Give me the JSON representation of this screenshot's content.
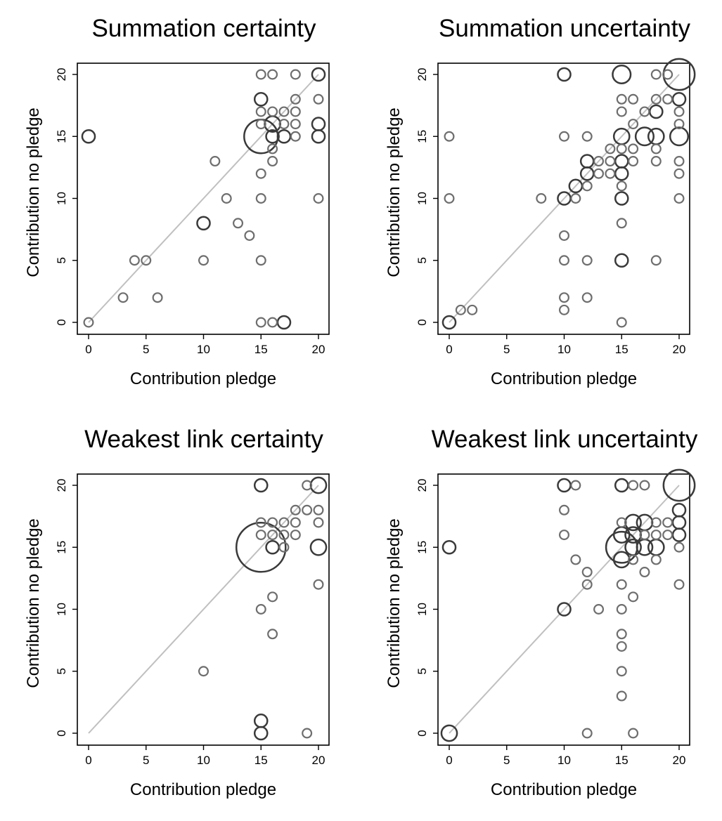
{
  "chart_data": [
    {
      "type": "scatter",
      "title": "Summation certainty",
      "xlabel": "Contribution pledge",
      "ylabel": "Contribution no pledge",
      "xlim": [
        0,
        20
      ],
      "ylim": [
        0,
        20
      ],
      "xticks": [
        0,
        5,
        10,
        15,
        20
      ],
      "yticks": [
        0,
        5,
        10,
        15,
        20
      ],
      "reference_line": "y = x",
      "grid": false,
      "marker_color": "#6e6e6e",
      "points": [
        {
          "x": 0,
          "y": 0,
          "n": 1
        },
        {
          "x": 0,
          "y": 15,
          "n": 2
        },
        {
          "x": 3,
          "y": 2,
          "n": 1
        },
        {
          "x": 4,
          "y": 5,
          "n": 1
        },
        {
          "x": 5,
          "y": 5,
          "n": 1
        },
        {
          "x": 6,
          "y": 2,
          "n": 1
        },
        {
          "x": 10,
          "y": 5,
          "n": 1
        },
        {
          "x": 10,
          "y": 8,
          "n": 2
        },
        {
          "x": 11,
          "y": 13,
          "n": 1
        },
        {
          "x": 12,
          "y": 10,
          "n": 1
        },
        {
          "x": 13,
          "y": 8,
          "n": 1
        },
        {
          "x": 14,
          "y": 7,
          "n": 1
        },
        {
          "x": 15,
          "y": 0,
          "n": 1
        },
        {
          "x": 15,
          "y": 5,
          "n": 1
        },
        {
          "x": 15,
          "y": 10,
          "n": 1
        },
        {
          "x": 15,
          "y": 12,
          "n": 1
        },
        {
          "x": 15,
          "y": 15,
          "n": 14
        },
        {
          "x": 15,
          "y": 16,
          "n": 1
        },
        {
          "x": 15,
          "y": 17,
          "n": 1
        },
        {
          "x": 15,
          "y": 18,
          "n": 2
        },
        {
          "x": 15,
          "y": 20,
          "n": 1
        },
        {
          "x": 16,
          "y": 0,
          "n": 1
        },
        {
          "x": 16,
          "y": 13,
          "n": 1
        },
        {
          "x": 16,
          "y": 14,
          "n": 1
        },
        {
          "x": 16,
          "y": 15,
          "n": 2
        },
        {
          "x": 16,
          "y": 16,
          "n": 3
        },
        {
          "x": 16,
          "y": 17,
          "n": 1
        },
        {
          "x": 16,
          "y": 20,
          "n": 1
        },
        {
          "x": 17,
          "y": 0,
          "n": 2
        },
        {
          "x": 17,
          "y": 15,
          "n": 2
        },
        {
          "x": 17,
          "y": 16,
          "n": 1
        },
        {
          "x": 17,
          "y": 17,
          "n": 1
        },
        {
          "x": 18,
          "y": 15,
          "n": 1
        },
        {
          "x": 18,
          "y": 16,
          "n": 1
        },
        {
          "x": 18,
          "y": 17,
          "n": 1
        },
        {
          "x": 18,
          "y": 18,
          "n": 1
        },
        {
          "x": 18,
          "y": 20,
          "n": 1
        },
        {
          "x": 20,
          "y": 10,
          "n": 1
        },
        {
          "x": 20,
          "y": 15,
          "n": 2
        },
        {
          "x": 20,
          "y": 16,
          "n": 2
        },
        {
          "x": 20,
          "y": 18,
          "n": 1
        },
        {
          "x": 20,
          "y": 20,
          "n": 2
        }
      ]
    },
    {
      "type": "scatter",
      "title": "Summation uncertainty",
      "xlabel": "Contribution pledge",
      "ylabel": "Contribution no pledge",
      "xlim": [
        0,
        20
      ],
      "ylim": [
        0,
        20
      ],
      "xticks": [
        0,
        5,
        10,
        15,
        20
      ],
      "yticks": [
        0,
        5,
        10,
        15,
        20
      ],
      "reference_line": "y = x",
      "grid": false,
      "marker_color": "#6e6e6e",
      "points": [
        {
          "x": 0,
          "y": 0,
          "n": 2
        },
        {
          "x": 0,
          "y": 10,
          "n": 1
        },
        {
          "x": 0,
          "y": 15,
          "n": 1
        },
        {
          "x": 1,
          "y": 1,
          "n": 1
        },
        {
          "x": 2,
          "y": 1,
          "n": 1
        },
        {
          "x": 8,
          "y": 10,
          "n": 1
        },
        {
          "x": 10,
          "y": 1,
          "n": 1
        },
        {
          "x": 10,
          "y": 2,
          "n": 1
        },
        {
          "x": 10,
          "y": 5,
          "n": 1
        },
        {
          "x": 10,
          "y": 7,
          "n": 1
        },
        {
          "x": 10,
          "y": 10,
          "n": 2
        },
        {
          "x": 10,
          "y": 15,
          "n": 1
        },
        {
          "x": 10,
          "y": 20,
          "n": 2
        },
        {
          "x": 11,
          "y": 10,
          "n": 1
        },
        {
          "x": 11,
          "y": 11,
          "n": 2
        },
        {
          "x": 12,
          "y": 2,
          "n": 1
        },
        {
          "x": 12,
          "y": 5,
          "n": 1
        },
        {
          "x": 12,
          "y": 11,
          "n": 1
        },
        {
          "x": 12,
          "y": 12,
          "n": 2
        },
        {
          "x": 12,
          "y": 13,
          "n": 2
        },
        {
          "x": 12,
          "y": 15,
          "n": 1
        },
        {
          "x": 13,
          "y": 12,
          "n": 1
        },
        {
          "x": 13,
          "y": 13,
          "n": 1
        },
        {
          "x": 14,
          "y": 12,
          "n": 1
        },
        {
          "x": 14,
          "y": 13,
          "n": 1
        },
        {
          "x": 14,
          "y": 14,
          "n": 1
        },
        {
          "x": 15,
          "y": 0,
          "n": 1
        },
        {
          "x": 15,
          "y": 5,
          "n": 2
        },
        {
          "x": 15,
          "y": 8,
          "n": 1
        },
        {
          "x": 15,
          "y": 10,
          "n": 2
        },
        {
          "x": 15,
          "y": 11,
          "n": 1
        },
        {
          "x": 15,
          "y": 12,
          "n": 2
        },
        {
          "x": 15,
          "y": 13,
          "n": 2
        },
        {
          "x": 15,
          "y": 14,
          "n": 1
        },
        {
          "x": 15,
          "y": 15,
          "n": 3
        },
        {
          "x": 15,
          "y": 17,
          "n": 1
        },
        {
          "x": 15,
          "y": 18,
          "n": 1
        },
        {
          "x": 15,
          "y": 20,
          "n": 4
        },
        {
          "x": 16,
          "y": 13,
          "n": 1
        },
        {
          "x": 16,
          "y": 14,
          "n": 1
        },
        {
          "x": 16,
          "y": 16,
          "n": 1
        },
        {
          "x": 16,
          "y": 18,
          "n": 1
        },
        {
          "x": 17,
          "y": 15,
          "n": 4
        },
        {
          "x": 17,
          "y": 17,
          "n": 1
        },
        {
          "x": 18,
          "y": 5,
          "n": 1
        },
        {
          "x": 18,
          "y": 13,
          "n": 1
        },
        {
          "x": 18,
          "y": 14,
          "n": 1
        },
        {
          "x": 18,
          "y": 15,
          "n": 3
        },
        {
          "x": 18,
          "y": 17,
          "n": 2
        },
        {
          "x": 18,
          "y": 18,
          "n": 1
        },
        {
          "x": 18,
          "y": 20,
          "n": 1
        },
        {
          "x": 19,
          "y": 18,
          "n": 1
        },
        {
          "x": 19,
          "y": 20,
          "n": 1
        },
        {
          "x": 20,
          "y": 10,
          "n": 1
        },
        {
          "x": 20,
          "y": 12,
          "n": 1
        },
        {
          "x": 20,
          "y": 13,
          "n": 1
        },
        {
          "x": 20,
          "y": 15,
          "n": 4
        },
        {
          "x": 20,
          "y": 16,
          "n": 1
        },
        {
          "x": 20,
          "y": 17,
          "n": 1
        },
        {
          "x": 20,
          "y": 18,
          "n": 2
        },
        {
          "x": 20,
          "y": 20,
          "n": 12
        }
      ]
    },
    {
      "type": "scatter",
      "title": "Weakest link certainty",
      "xlabel": "Contribution pledge",
      "ylabel": "Contribution no pledge",
      "xlim": [
        0,
        20
      ],
      "ylim": [
        0,
        20
      ],
      "xticks": [
        0,
        5,
        10,
        15,
        20
      ],
      "yticks": [
        0,
        5,
        10,
        15,
        20
      ],
      "reference_line": "y = x",
      "grid": false,
      "marker_color": "#6e6e6e",
      "points": [
        {
          "x": 10,
          "y": 5,
          "n": 1
        },
        {
          "x": 15,
          "y": 0,
          "n": 2
        },
        {
          "x": 15,
          "y": 1,
          "n": 2
        },
        {
          "x": 15,
          "y": 10,
          "n": 1
        },
        {
          "x": 15,
          "y": 15,
          "n": 30
        },
        {
          "x": 15,
          "y": 16,
          "n": 1
        },
        {
          "x": 15,
          "y": 17,
          "n": 1
        },
        {
          "x": 15,
          "y": 20,
          "n": 2
        },
        {
          "x": 16,
          "y": 8,
          "n": 1
        },
        {
          "x": 16,
          "y": 11,
          "n": 1
        },
        {
          "x": 16,
          "y": 15,
          "n": 2
        },
        {
          "x": 16,
          "y": 16,
          "n": 1
        },
        {
          "x": 16,
          "y": 17,
          "n": 1
        },
        {
          "x": 17,
          "y": 15,
          "n": 1
        },
        {
          "x": 17,
          "y": 16,
          "n": 1
        },
        {
          "x": 17,
          "y": 17,
          "n": 1
        },
        {
          "x": 18,
          "y": 16,
          "n": 1
        },
        {
          "x": 18,
          "y": 17,
          "n": 1
        },
        {
          "x": 18,
          "y": 18,
          "n": 1
        },
        {
          "x": 19,
          "y": 0,
          "n": 1
        },
        {
          "x": 19,
          "y": 18,
          "n": 1
        },
        {
          "x": 19,
          "y": 20,
          "n": 1
        },
        {
          "x": 20,
          "y": 12,
          "n": 1
        },
        {
          "x": 20,
          "y": 15,
          "n": 3
        },
        {
          "x": 20,
          "y": 17,
          "n": 1
        },
        {
          "x": 20,
          "y": 18,
          "n": 1
        },
        {
          "x": 20,
          "y": 20,
          "n": 3
        }
      ]
    },
    {
      "type": "scatter",
      "title": "Weakest link uncertainty",
      "xlabel": "Contribution pledge",
      "ylabel": "Contribution no pledge",
      "xlim": [
        0,
        20
      ],
      "ylim": [
        0,
        20
      ],
      "xticks": [
        0,
        5,
        10,
        15,
        20
      ],
      "yticks": [
        0,
        5,
        10,
        15,
        20
      ],
      "reference_line": "y = x",
      "grid": false,
      "marker_color": "#6e6e6e",
      "points": [
        {
          "x": 0,
          "y": 0,
          "n": 3
        },
        {
          "x": 0,
          "y": 15,
          "n": 2
        },
        {
          "x": 10,
          "y": 10,
          "n": 2
        },
        {
          "x": 10,
          "y": 16,
          "n": 1
        },
        {
          "x": 10,
          "y": 18,
          "n": 1
        },
        {
          "x": 10,
          "y": 20,
          "n": 2
        },
        {
          "x": 11,
          "y": 14,
          "n": 1
        },
        {
          "x": 11,
          "y": 20,
          "n": 1
        },
        {
          "x": 12,
          "y": 0,
          "n": 1
        },
        {
          "x": 12,
          "y": 12,
          "n": 1
        },
        {
          "x": 12,
          "y": 13,
          "n": 1
        },
        {
          "x": 13,
          "y": 10,
          "n": 1
        },
        {
          "x": 15,
          "y": 3,
          "n": 1
        },
        {
          "x": 15,
          "y": 5,
          "n": 1
        },
        {
          "x": 15,
          "y": 7,
          "n": 1
        },
        {
          "x": 15,
          "y": 8,
          "n": 1
        },
        {
          "x": 15,
          "y": 10,
          "n": 1
        },
        {
          "x": 15,
          "y": 12,
          "n": 1
        },
        {
          "x": 15,
          "y": 14,
          "n": 3
        },
        {
          "x": 15,
          "y": 15,
          "n": 12
        },
        {
          "x": 15,
          "y": 16,
          "n": 3
        },
        {
          "x": 15,
          "y": 17,
          "n": 1
        },
        {
          "x": 15,
          "y": 20,
          "n": 2
        },
        {
          "x": 16,
          "y": 0,
          "n": 1
        },
        {
          "x": 16,
          "y": 11,
          "n": 1
        },
        {
          "x": 16,
          "y": 14,
          "n": 1
        },
        {
          "x": 16,
          "y": 15,
          "n": 3
        },
        {
          "x": 16,
          "y": 16,
          "n": 3
        },
        {
          "x": 16,
          "y": 17,
          "n": 3
        },
        {
          "x": 16,
          "y": 20,
          "n": 1
        },
        {
          "x": 17,
          "y": 13,
          "n": 1
        },
        {
          "x": 17,
          "y": 15,
          "n": 3
        },
        {
          "x": 17,
          "y": 16,
          "n": 1
        },
        {
          "x": 17,
          "y": 17,
          "n": 3
        },
        {
          "x": 17,
          "y": 20,
          "n": 1
        },
        {
          "x": 18,
          "y": 14,
          "n": 1
        },
        {
          "x": 18,
          "y": 15,
          "n": 3
        },
        {
          "x": 18,
          "y": 16,
          "n": 1
        },
        {
          "x": 18,
          "y": 17,
          "n": 1
        },
        {
          "x": 19,
          "y": 16,
          "n": 1
        },
        {
          "x": 19,
          "y": 17,
          "n": 1
        },
        {
          "x": 20,
          "y": 12,
          "n": 1
        },
        {
          "x": 20,
          "y": 15,
          "n": 1
        },
        {
          "x": 20,
          "y": 16,
          "n": 2
        },
        {
          "x": 20,
          "y": 17,
          "n": 2
        },
        {
          "x": 20,
          "y": 18,
          "n": 2
        },
        {
          "x": 20,
          "y": 20,
          "n": 12
        }
      ]
    }
  ]
}
